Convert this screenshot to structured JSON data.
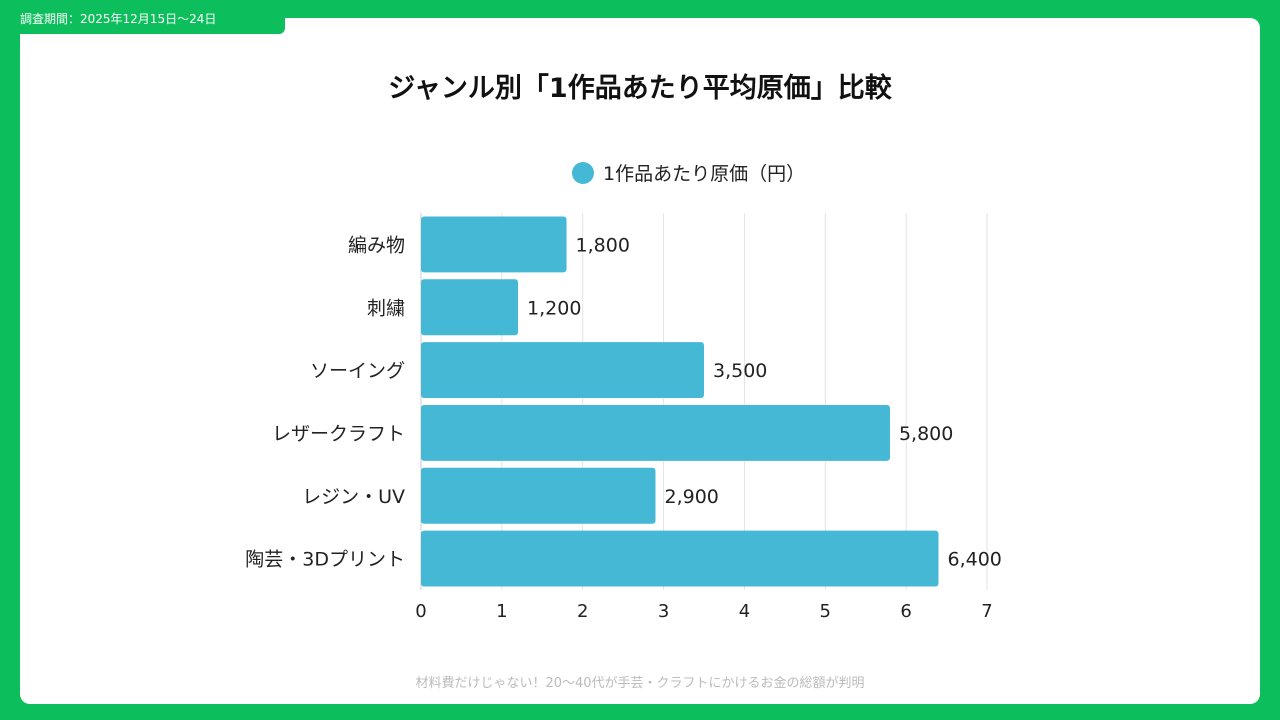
{
  "header": {
    "survey_period": "調査期間：2025年12月15日〜24日"
  },
  "title": "ジャンル別「1作品あたり平均原価」比較",
  "footer": "材料費だけじゃない！20〜40代が手芸・クラフトにかけるお金の総額が判明",
  "chart_data": {
    "type": "bar",
    "orientation": "horizontal",
    "title": "ジャンル別「1作品あたり平均原価」比較",
    "legend": {
      "label": "1作品あたり原価（円）",
      "position": "top"
    },
    "categories": [
      "編み物",
      "刺繍",
      "ソーイング",
      "レザークラフト",
      "レジン・UV",
      "陶芸・3Dプリント"
    ],
    "values": [
      1800,
      1200,
      3500,
      5800,
      2900,
      6400
    ],
    "value_labels": [
      "1,800",
      "1,200",
      "3,500",
      "5,800",
      "2,900",
      "6,400"
    ],
    "xticks": [
      "0",
      "1",
      "2",
      "3",
      "4",
      "5",
      "6",
      "7"
    ],
    "xlim": [
      0,
      7000
    ],
    "grid": true,
    "color": "#45b8d6"
  }
}
